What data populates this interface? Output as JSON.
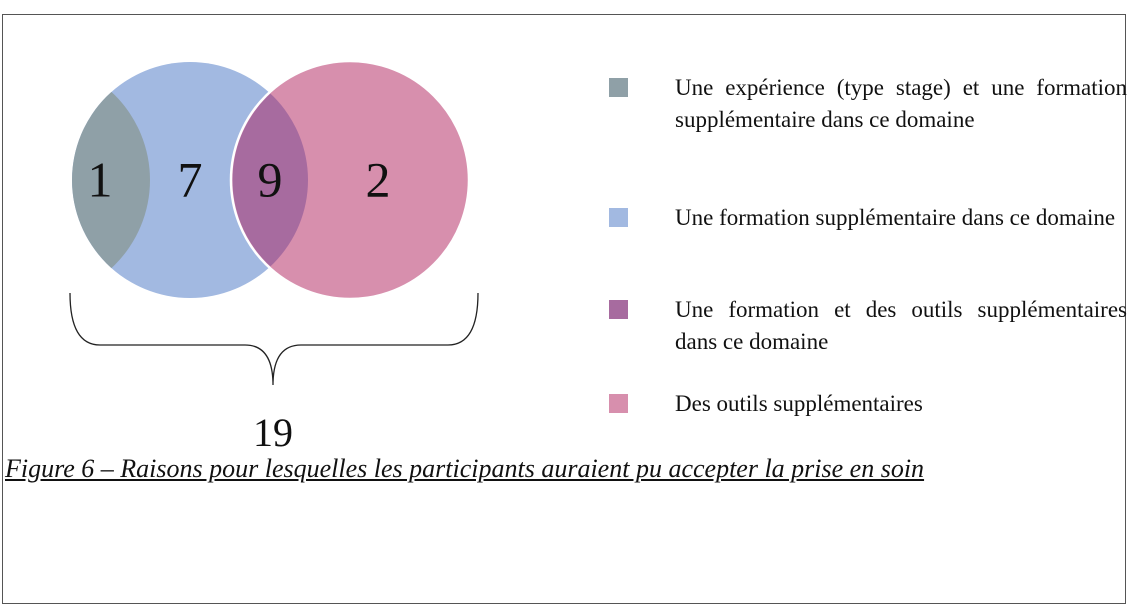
{
  "regions": [
    {
      "label": "1",
      "color": "#8fa0a7"
    },
    {
      "label": "7",
      "color": "#a2b9e1"
    },
    {
      "label": "9",
      "color": "#a76b9f"
    },
    {
      "label": "2",
      "color": "#d78fad"
    }
  ],
  "total": "19",
  "legend": [
    {
      "text": "Une expérience (type stage) et une formation supplémentaire dans ce domaine",
      "color": "#8fa0a7"
    },
    {
      "text": "Une formation supplémentaire dans ce domaine",
      "color": "#a2b9e1"
    },
    {
      "text": "Une formation et des outils supplémentaires dans ce domaine",
      "color": "#a76b9f"
    },
    {
      "text": "Des outils supplémentaires",
      "color": "#d78fad"
    }
  ],
  "caption": "Figure 6 – Raisons pour lesquelles les participants auraient pu accepter la prise en soin"
}
